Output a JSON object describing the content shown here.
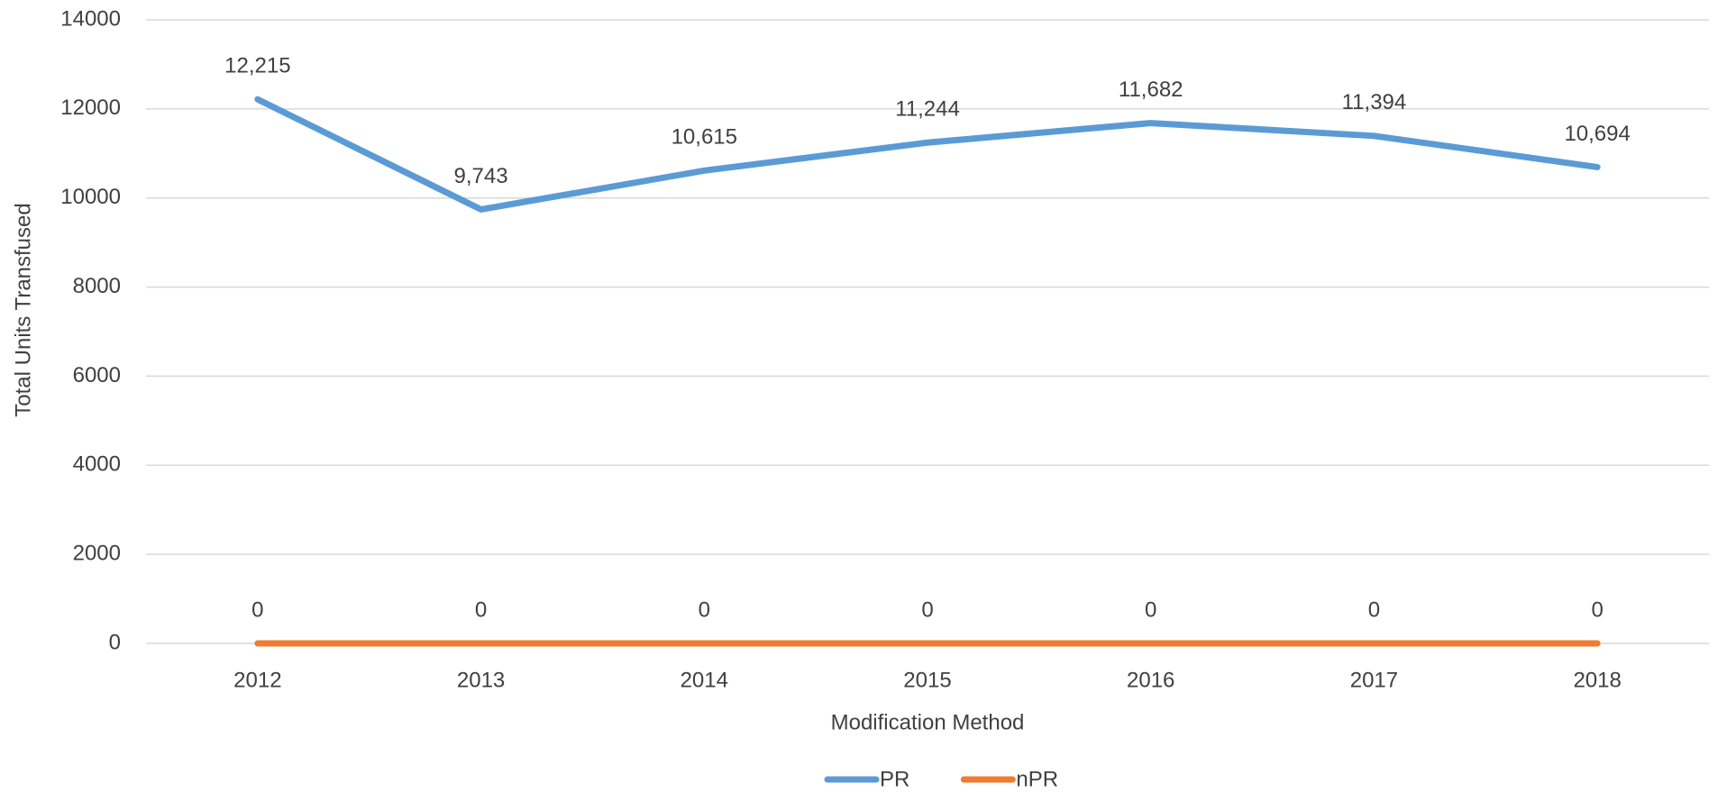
{
  "chart_data": {
    "type": "line",
    "x_label": "Modification Method",
    "y_label": "Total Units Transfused",
    "categories": [
      "2012",
      "2013",
      "2014",
      "2015",
      "2016",
      "2017",
      "2018"
    ],
    "series": [
      {
        "name": "PR",
        "color": "#5b9bd5",
        "values": [
          12215,
          9743,
          10615,
          11244,
          11682,
          11394,
          10694
        ],
        "value_labels": [
          "12,215",
          "9,743",
          "10,615",
          "11,244",
          "11,682",
          "11,394",
          "10,694"
        ]
      },
      {
        "name": "nPR",
        "color": "#ed7d31",
        "values": [
          0,
          0,
          0,
          0,
          0,
          0,
          0
        ]
      }
    ],
    "ylim": [
      0,
      14000
    ],
    "yticks": [
      0,
      2000,
      4000,
      6000,
      8000,
      10000,
      12000,
      14000
    ],
    "grid": true,
    "legend": "bottom"
  }
}
